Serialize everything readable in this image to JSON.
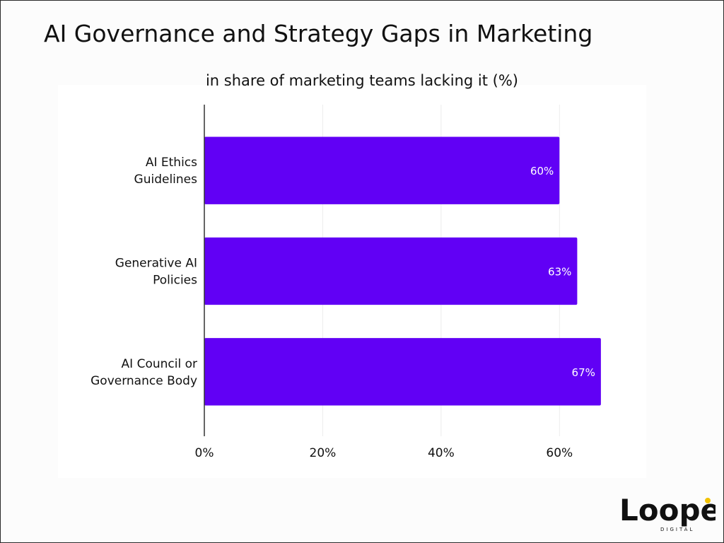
{
  "title": "AI Governance and Strategy Gaps in Marketing",
  "subtitle": "in share of marketing teams lacking it (%)",
  "brand": {
    "name": "Loopex",
    "tagline": "DIGITAL",
    "accent_color": "#f2c200"
  },
  "colors": {
    "bar": "#6100f5",
    "bar_label": "#ffffff",
    "grid": "#ececec",
    "axis": "#333333",
    "text": "#111111"
  },
  "chart_data": {
    "type": "bar",
    "orientation": "horizontal",
    "categories": [
      [
        "AI Ethics",
        "Guidelines"
      ],
      [
        "Generative AI",
        "Policies"
      ],
      [
        "AI Council or",
        "Governance Body"
      ]
    ],
    "values": [
      60,
      63,
      67
    ],
    "data_labels": [
      "60%",
      "63%",
      "67%"
    ],
    "xlim": [
      0,
      70
    ],
    "x_ticks": [
      0,
      20,
      40,
      60
    ],
    "x_tick_labels": [
      "0%",
      "20%",
      "40%",
      "60%"
    ],
    "grid": true,
    "legend": false
  }
}
